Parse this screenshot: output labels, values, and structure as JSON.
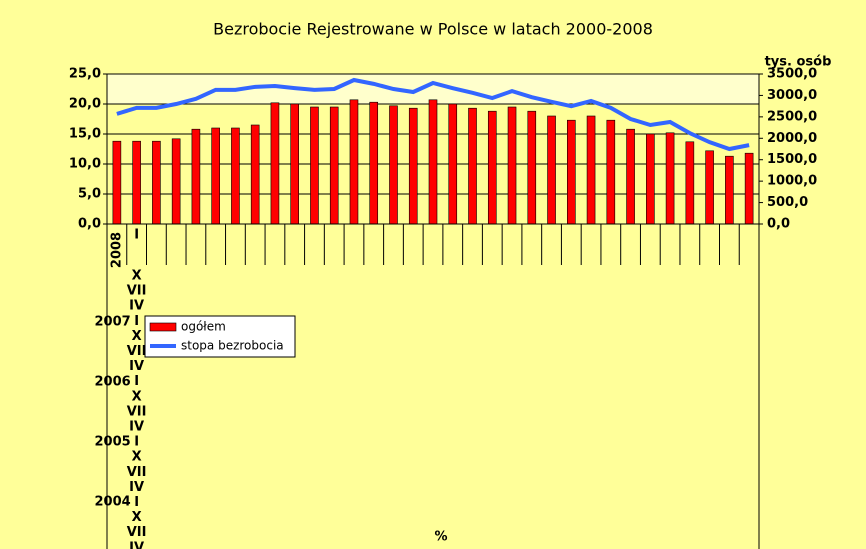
{
  "chart_data": {
    "type": "bar_line",
    "title": "Bezrobocie Rejestrowane w Polsce w latach 2000-2008",
    "xlabel": "%",
    "y2label": "tys. osób",
    "categories": [
      "2008",
      "I",
      null,
      null,
      null,
      null,
      null,
      null,
      null,
      null,
      null,
      null,
      null,
      null,
      null,
      null,
      null,
      null,
      null,
      null,
      null,
      null,
      null,
      null,
      null,
      null,
      null,
      null,
      null,
      null,
      null,
      null,
      null
    ],
    "category_label_overflow": {
      "months": [
        "X",
        "VII",
        "IV",
        "I",
        "X",
        "VII",
        "IV",
        "I",
        "X",
        "VII",
        "IV",
        "I",
        "X",
        "VII",
        "IV",
        "I",
        "X",
        "VII",
        "IV"
      ],
      "years": [
        "2007",
        "2006",
        "2005",
        "2004"
      ]
    },
    "series": [
      {
        "name": "ogółem",
        "color": "#ff0000",
        "kind": "bar",
        "axis": "y",
        "values": [
          13.8,
          13.8,
          13.8,
          14.2,
          15.8,
          16.0,
          16.0,
          16.5,
          20.2,
          20.0,
          19.5,
          19.5,
          20.7,
          20.3,
          19.7,
          19.3,
          20.7,
          20.0,
          19.3,
          18.8,
          19.5,
          18.8,
          18.0,
          17.3,
          18.0,
          17.3,
          15.8,
          15.0,
          15.2,
          13.7,
          12.2,
          11.3,
          11.8
        ]
      },
      {
        "name": "stopa bezrobocia",
        "color": "#3366ff",
        "kind": "line",
        "axis": "y2",
        "values": [
          2570,
          2710,
          2710,
          2800,
          2920,
          3130,
          3130,
          3200,
          3220,
          3170,
          3130,
          3150,
          3360,
          3270,
          3150,
          3080,
          3290,
          3170,
          3060,
          2940,
          3100,
          2960,
          2850,
          2750,
          2870,
          2710,
          2450,
          2310,
          2380,
          2120,
          1910,
          1750,
          1840
        ]
      }
    ],
    "ylim": [
      0,
      25
    ],
    "yticks": [
      {
        "value": 0,
        "label": "0,0"
      },
      {
        "value": 5,
        "label": "5,0"
      },
      {
        "value": 10,
        "label": "10,0"
      },
      {
        "value": 15,
        "label": "15,0"
      },
      {
        "value": 20,
        "label": "20,0"
      },
      {
        "value": 25,
        "label": "25,0"
      }
    ],
    "y2lim": [
      0,
      3500
    ],
    "y2ticks": [
      {
        "value": 0,
        "label": "0,0"
      },
      {
        "value": 500,
        "label": "500,0"
      },
      {
        "value": 1000,
        "label": "1000,0"
      },
      {
        "value": 1500,
        "label": "1500,0"
      },
      {
        "value": 2000,
        "label": "2000,0"
      },
      {
        "value": 2500,
        "label": "2500,0"
      },
      {
        "value": 3000,
        "label": "3000,0"
      },
      {
        "value": 3500,
        "label": "3500,0"
      }
    ],
    "grid": true
  }
}
